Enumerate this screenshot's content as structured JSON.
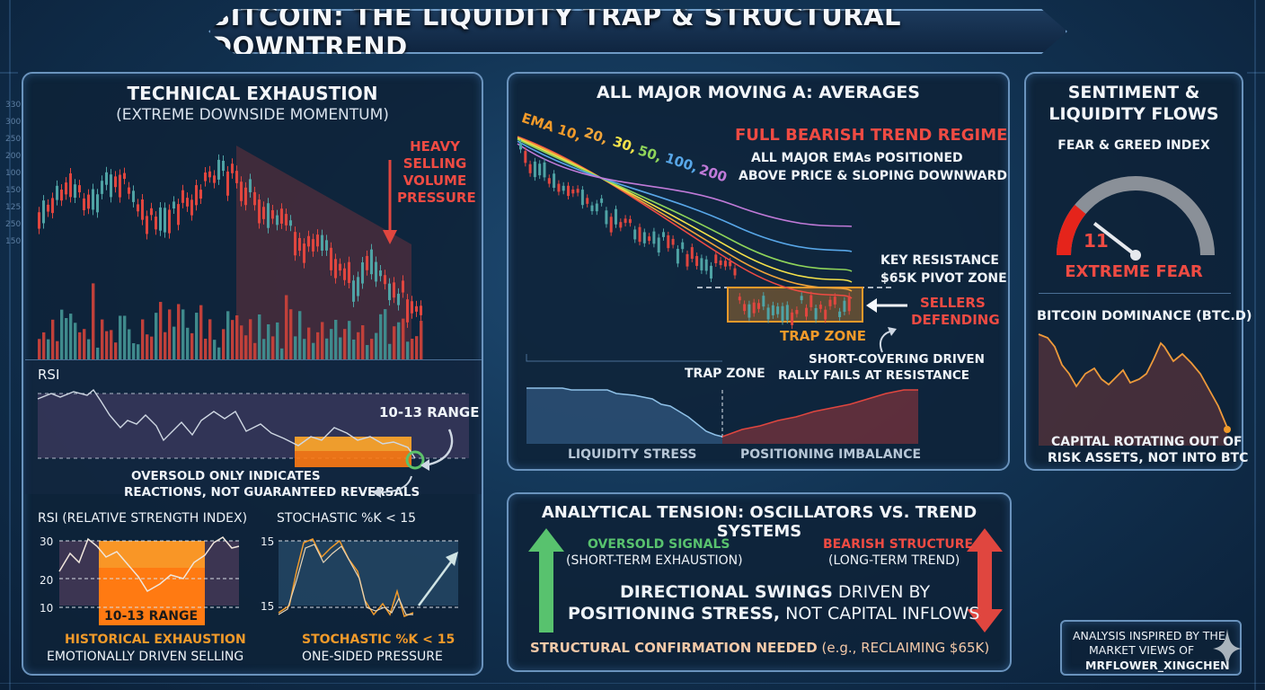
{
  "title": "BITCOIN: THE LIQUIDITY TRAP & STRUCTURAL DOWNTREND",
  "left_panel": {
    "title": "TECHNICAL EXHAUSTION",
    "subtitle": "(EXTREME DOWNSIDE MOMENTUM)",
    "volume_note": [
      "HEAVY",
      "SELLING",
      "VOLUME",
      "PRESSURE"
    ],
    "rsi_label": "RSI",
    "range_label": "10-13 RANGE",
    "oversold_note": [
      "OVERSOLD ONLY INDICATES",
      "REACTIONS, NOT GUARANTEED REVERSALS"
    ],
    "price_axis_ticks": [
      "330",
      "300",
      "250",
      "200",
      "100",
      "150",
      "125",
      "250",
      "150"
    ],
    "rsi_mini": {
      "title": "RSI (RELATIVE STRENGTH INDEX)",
      "ticks": [
        "30",
        "20",
        "10"
      ],
      "range_label": "10-13 RANGE",
      "caption_1": "HISTORICAL EXHAUSTION",
      "caption_2": "EMOTIONALLY DRIVEN SELLING"
    },
    "stoch_mini": {
      "title": "STOCHASTIC %K < 15",
      "ticks": [
        "15",
        "15"
      ],
      "caption_1": "STOCHASTIC %K < 15",
      "caption_2": "ONE-SIDED PRESSURE"
    }
  },
  "middle_panel": {
    "title": "ALL MAJOR MOVING A: AVERAGES",
    "ema_legend": {
      "prefix": "EMA 10,",
      "items": [
        {
          "label": "20,",
          "color": "#f0a43a"
        },
        {
          "label": "30,",
          "color": "#f3e24a"
        },
        {
          "label": "50,",
          "color": "#8fd45a"
        },
        {
          "label": "100,",
          "color": "#58a7e8"
        },
        {
          "label": "200",
          "color": "#c07ad8"
        }
      ]
    },
    "regime_title": "FULL BEARISH TREND REGIME",
    "regime_text": [
      "ALL MAJOR EMAs POSITIONED",
      "ABOVE PRICE & SLOPING DOWNWARD"
    ],
    "resistance": [
      "KEY RESISTANCE",
      "$65K PIVOT ZONE"
    ],
    "sellers": [
      "SELLERS",
      "DEFENDING"
    ],
    "trap_zone": "TRAP ZONE",
    "trap_zone_2": "TRAP ZONE",
    "short_cover": [
      "SHORT-COVERING DRIVEN",
      "RALLY FAILS AT RESISTANCE"
    ],
    "liquidity_stress": "LIQUIDITY STRESS",
    "positioning": "POSITIONING IMBALANCE"
  },
  "right_panel": {
    "title": [
      "SENTIMENT &",
      "LIQUIDITY FLOWS"
    ],
    "fg_title": "FEAR & GREED INDEX",
    "fg_value": "11",
    "fg_level": 0.11,
    "fg_label": "EXTREME FEAR",
    "dominance_title": "BITCOIN DOMINANCE (BTC.D)",
    "dominance_note": [
      "CAPITAL ROTATING OUT OF",
      "RISK ASSETS, NOT INTO BTC"
    ]
  },
  "tension_panel": {
    "title": "ANALYTICAL TENSION: OSCILLATORS VS. TREND SYSTEMS",
    "left_label": "OVERSOLD SIGNALS",
    "left_sub": "(SHORT-TERM EXHAUSTION)",
    "right_label": "BEARISH STRUCTURE",
    "right_sub": "(LONG-TERM TREND)",
    "line1_bold": "DIRECTIONAL SWINGS",
    "line1_rest": "DRIVEN BY",
    "line2_bold": "POSITIONING STRESS,",
    "line2_rest": "NOT CAPITAL INFLOWS",
    "confirm_bold": "STRUCTURAL CONFIRMATION NEEDED",
    "confirm_rest": "(e.g., RECLAIMING $65K)"
  },
  "credit": {
    "line1": "ANALYSIS INSPIRED BY THE",
    "line2": "MARKET VIEWS OF",
    "line3": "MRFLOWER_XINGCHEN"
  },
  "colors": {
    "bear_red": "#e0463f",
    "bull_teal": "#4fa3a5",
    "accent_orange": "#f19a2a",
    "green": "#58c26e",
    "panel_border": "#6a93bd"
  }
}
